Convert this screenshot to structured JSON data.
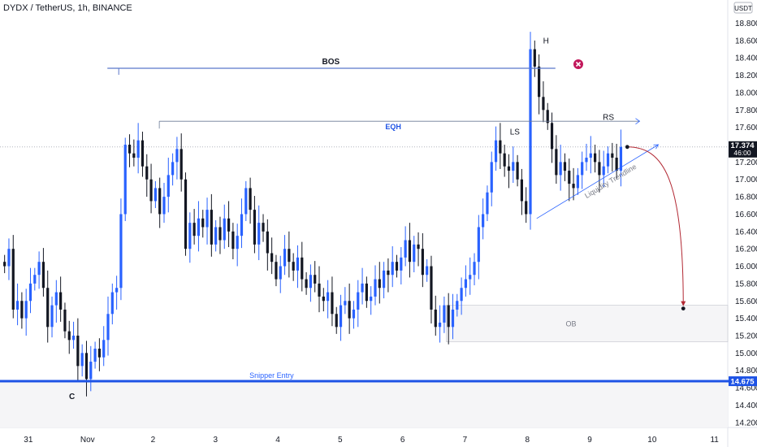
{
  "header": {
    "title": "DYDX / TetherUS, 1h, BINANCE",
    "currency": "USDT"
  },
  "price_axis": {
    "labels": [
      "18.800",
      "18.600",
      "18.400",
      "18.200",
      "18.000",
      "17.800",
      "17.600",
      "17.200",
      "17.000",
      "16.800",
      "16.600",
      "16.400",
      "16.200",
      "16.000",
      "15.800",
      "15.600",
      "15.400",
      "15.200",
      "15.000",
      "14.800",
      "14.600",
      "14.400",
      "14.200"
    ],
    "current_price_tag": "17.374",
    "countdown_tag": "46:00",
    "entry_price_tag": "14.675"
  },
  "time_axis": {
    "labels": [
      "31",
      "Nov",
      "2",
      "3",
      "4",
      "5",
      "6",
      "7",
      "8",
      "9",
      "10",
      "11"
    ]
  },
  "annotations": {
    "bos": "BOS",
    "eqh": "EQH",
    "h": "H",
    "ls": "LS",
    "rs": "RS",
    "trendline": "Liquidity Trendline",
    "ob": "OB",
    "entry": "Snipper Entry",
    "c": "C"
  },
  "colors": {
    "up_candle": "#2962ff",
    "down_candle": "#131722",
    "entry_line": "#1e53e5",
    "projection": "#b22833",
    "cancel_marker": "#c2185b"
  },
  "chart_data": {
    "type": "candlestick",
    "symbol": "DYDX / TetherUS",
    "interval": "1h",
    "exchange": "BINANCE",
    "ylim": [
      14.1,
      19.1
    ],
    "x_range": [
      -0.4,
      11.0
    ],
    "current_price": 17.374,
    "levels": [
      {
        "label": "BOS",
        "price": 18.28,
        "x_from": 1.45,
        "x_to": 8.45
      },
      {
        "label": "EQH",
        "price": 17.67,
        "x_from": 2.1,
        "x_to": 9.8
      },
      {
        "label": "Snipper Entry",
        "price": 14.675,
        "x_from": -0.4,
        "x_to": 11.0
      }
    ],
    "zones": [
      {
        "label": "OB",
        "x_from": 6.7,
        "x_to": 11.0,
        "price_low": 15.13,
        "price_high": 15.55
      }
    ],
    "trendline": {
      "label": "Liquidity Trendline",
      "points": [
        [
          8.15,
          16.55
        ],
        [
          10.1,
          17.4
        ]
      ]
    },
    "projection": {
      "from": [
        9.55,
        17.374
      ],
      "to": [
        10.5,
        15.55
      ]
    },
    "pivots": [
      {
        "label": "C",
        "x": 0.7,
        "price": 14.5
      },
      {
        "label": "H",
        "x": 8.3,
        "price": 18.6
      },
      {
        "label": "LS",
        "x": 7.8,
        "price": 17.55
      },
      {
        "label": "RS",
        "x": 9.3,
        "price": 17.72
      }
    ],
    "candles_close": [
      16.0,
      16.2,
      15.5,
      15.6,
      15.4,
      15.6,
      15.8,
      15.9,
      16.05,
      15.75,
      15.3,
      15.55,
      15.7,
      15.5,
      15.25,
      15.15,
      15.2,
      14.85,
      15.0,
      14.7,
      14.9,
      15.05,
      14.95,
      15.15,
      15.45,
      15.7,
      15.75,
      16.6,
      17.4,
      17.3,
      17.25,
      17.45,
      17.15,
      17.0,
      16.75,
      16.9,
      16.6,
      16.8,
      17.05,
      17.2,
      17.35,
      17.0,
      16.2,
      16.5,
      16.35,
      16.55,
      16.45,
      16.65,
      16.25,
      16.45,
      16.3,
      16.55,
      16.4,
      16.2,
      16.35,
      16.6,
      16.9,
      16.65,
      16.25,
      16.5,
      16.4,
      16.15,
      16.05,
      15.85,
      16.0,
      16.2,
      16.05,
      15.95,
      16.1,
      15.85,
      15.75,
      15.9,
      15.8,
      15.65,
      15.6,
      15.7,
      15.45,
      15.3,
      15.55,
      15.6,
      15.4,
      15.5,
      15.7,
      15.8,
      15.6,
      15.65,
      15.85,
      15.75,
      15.95,
      15.9,
      16.05,
      15.95,
      16.1,
      16.3,
      16.05,
      16.25,
      16.2,
      15.9,
      16.0,
      15.5,
      15.3,
      15.35,
      15.55,
      15.3,
      15.5,
      15.6,
      15.75,
      15.85,
      15.9,
      16.05,
      16.45,
      16.6,
      16.85,
      17.2,
      17.45,
      17.3,
      17.15,
      17.1,
      17.2,
      17.0,
      16.75,
      16.6,
      18.5,
      18.3,
      17.95,
      17.8,
      17.65,
      17.35,
      17.05,
      17.2,
      17.1,
      16.95,
      16.9,
      17.05,
      17.2,
      17.25,
      17.3,
      17.2,
      17.05,
      17.15,
      17.3,
      17.25,
      17.1,
      17.374
    ]
  }
}
